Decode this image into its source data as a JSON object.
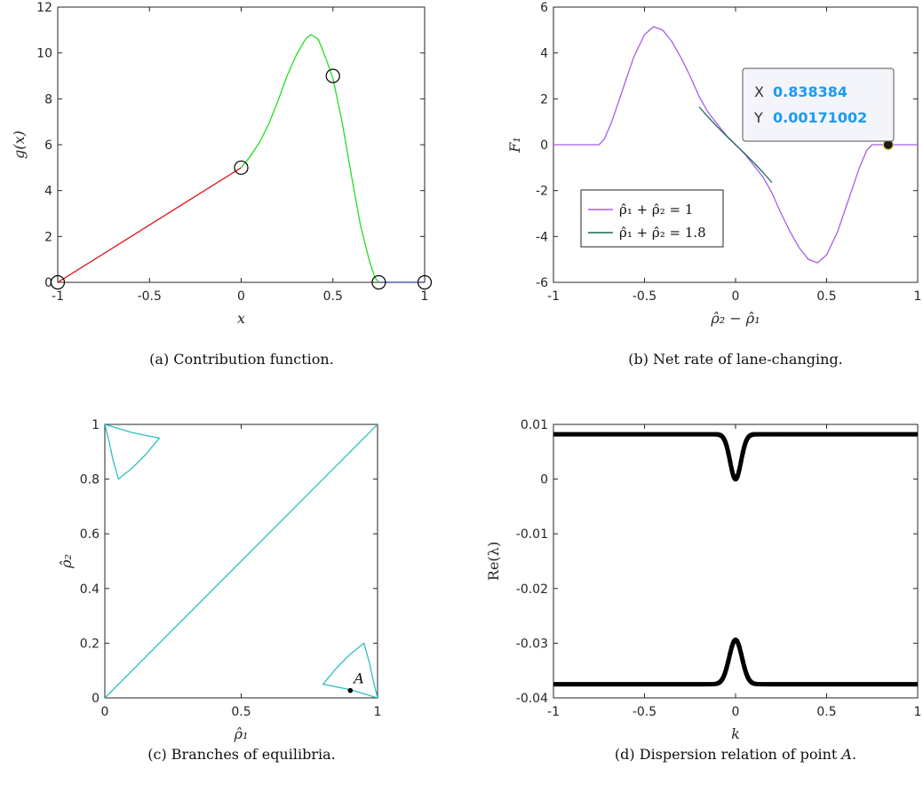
{
  "chart_data": [
    {
      "id": "a",
      "type": "line",
      "caption": "(a)  Contribution function.",
      "xlabel": "x",
      "ylabel": "g(x)",
      "xlim": [
        -1,
        1
      ],
      "ylim": [
        0,
        12
      ],
      "xticks": [
        -1,
        -0.5,
        0,
        0.5,
        1
      ],
      "xtick_labels": [
        "-1",
        "-0.5",
        "0",
        "0.5",
        "1"
      ],
      "yticks": [
        0,
        2,
        4,
        6,
        8,
        10,
        12
      ],
      "ytick_labels": [
        "0",
        "2",
        "4",
        "6",
        "8",
        "10",
        "12"
      ],
      "series": [
        {
          "color": "#e01010",
          "points": [
            [
              -1,
              0
            ],
            [
              0,
              5
            ]
          ]
        },
        {
          "color": "#22dd22",
          "points": [
            [
              0,
              5
            ],
            [
              0.05,
              5.5
            ],
            [
              0.1,
              6.1
            ],
            [
              0.15,
              6.9
            ],
            [
              0.2,
              7.9
            ],
            [
              0.25,
              9.0
            ],
            [
              0.3,
              9.9
            ],
            [
              0.35,
              10.6
            ],
            [
              0.38,
              10.8
            ],
            [
              0.42,
              10.6
            ],
            [
              0.46,
              9.8
            ],
            [
              0.5,
              8.9
            ],
            [
              0.55,
              7.0
            ],
            [
              0.6,
              4.7
            ],
            [
              0.65,
              2.5
            ],
            [
              0.7,
              0.9
            ],
            [
              0.73,
              0.2
            ],
            [
              0.75,
              0
            ]
          ]
        },
        {
          "color": "#2020dd",
          "points": [
            [
              0.75,
              0
            ],
            [
              1,
              0
            ]
          ]
        }
      ],
      "markers": [
        [
          -1,
          0
        ],
        [
          0,
          5
        ],
        [
          0.5,
          9
        ],
        [
          0.75,
          0
        ],
        [
          1,
          0
        ]
      ]
    },
    {
      "id": "b",
      "type": "line",
      "caption": "(b)  Net rate of lane-changing.",
      "xlabel": "ρ̂₂ − ρ̂₁",
      "ylabel": "F₁",
      "xlim": [
        -1,
        1
      ],
      "ylim": [
        -6,
        6
      ],
      "xticks": [
        -1,
        -0.5,
        0,
        0.5,
        1
      ],
      "xtick_labels": [
        "-1",
        "-0.5",
        "0",
        "0.5",
        "1"
      ],
      "yticks": [
        -6,
        -4,
        -2,
        0,
        2,
        4,
        6
      ],
      "ytick_labels": [
        "-6",
        "-4",
        "-2",
        "0",
        "2",
        "4",
        "6"
      ],
      "legend_position": "lower-left",
      "series": [
        {
          "name": "ρ̂₁ + ρ̂₂ = 1",
          "color": "#a95eea",
          "points": [
            [
              -1,
              0
            ],
            [
              -0.75,
              0
            ],
            [
              -0.72,
              0.25
            ],
            [
              -0.68,
              1.0
            ],
            [
              -0.62,
              2.4
            ],
            [
              -0.56,
              3.8
            ],
            [
              -0.5,
              4.8
            ],
            [
              -0.45,
              5.15
            ],
            [
              -0.4,
              5.0
            ],
            [
              -0.35,
              4.5
            ],
            [
              -0.3,
              3.8
            ],
            [
              -0.25,
              3.0
            ],
            [
              -0.2,
              2.1
            ],
            [
              -0.15,
              1.4
            ],
            [
              -0.1,
              0.9
            ],
            [
              -0.05,
              0.4
            ],
            [
              0,
              0
            ],
            [
              0.05,
              -0.4
            ],
            [
              0.1,
              -0.9
            ],
            [
              0.15,
              -1.4
            ],
            [
              0.2,
              -2.1
            ],
            [
              0.25,
              -3.0
            ],
            [
              0.3,
              -3.8
            ],
            [
              0.35,
              -4.5
            ],
            [
              0.4,
              -5.0
            ],
            [
              0.45,
              -5.15
            ],
            [
              0.5,
              -4.8
            ],
            [
              0.56,
              -3.8
            ],
            [
              0.62,
              -2.4
            ],
            [
              0.68,
              -1.0
            ],
            [
              0.72,
              -0.25
            ],
            [
              0.75,
              0
            ],
            [
              1,
              0
            ]
          ]
        },
        {
          "name": "ρ̂₁ + ρ̂₂ = 1.8",
          "color": "#1a6a55",
          "points": [
            [
              -0.2,
              1.65
            ],
            [
              -0.15,
              1.2
            ],
            [
              -0.1,
              0.78
            ],
            [
              -0.05,
              0.38
            ],
            [
              0,
              0
            ],
            [
              0.05,
              -0.38
            ],
            [
              0.1,
              -0.78
            ],
            [
              0.15,
              -1.2
            ],
            [
              0.2,
              -1.65
            ]
          ]
        }
      ],
      "datatip": {
        "x_key": "X",
        "x_value": "0.838384",
        "y_key": "Y",
        "y_value": "0.00171002",
        "point": [
          0.838384,
          0.00171002
        ]
      }
    },
    {
      "id": "c",
      "type": "line",
      "caption": "(c)  Branches of equilibria.",
      "xlabel": "ρ̂₁",
      "ylabel": "ρ̂₂",
      "xlim": [
        0,
        1
      ],
      "ylim": [
        0,
        1
      ],
      "xticks": [
        0,
        0.5,
        1
      ],
      "xtick_labels": [
        "0",
        "0.5",
        "1"
      ],
      "yticks": [
        0,
        0.2,
        0.4,
        0.6,
        0.8,
        1
      ],
      "ytick_labels": [
        "0",
        "0.2",
        "0.4",
        "0.6",
        "0.8",
        "1"
      ],
      "color": "#2ebfbf",
      "series": [
        {
          "points": [
            [
              0,
              0
            ],
            [
              1,
              1
            ]
          ]
        },
        {
          "points": [
            [
              0,
              1
            ],
            [
              0.1,
              0.97
            ],
            [
              0.2,
              0.95
            ],
            [
              0.15,
              0.89
            ],
            [
              0.1,
              0.84
            ],
            [
              0.05,
              0.8
            ],
            [
              0.03,
              0.87
            ],
            [
              0.015,
              0.94
            ],
            [
              0,
              1
            ]
          ]
        },
        {
          "points": [
            [
              1,
              0
            ],
            [
              0.9,
              0.03
            ],
            [
              0.8,
              0.05
            ],
            [
              0.85,
              0.11
            ],
            [
              0.9,
              0.16
            ],
            [
              0.95,
              0.2
            ],
            [
              0.97,
              0.13
            ],
            [
              0.985,
              0.06
            ],
            [
              1,
              0
            ]
          ]
        }
      ],
      "point_A": {
        "label": "A",
        "point": [
          0.9,
          0.027
        ]
      }
    },
    {
      "id": "d",
      "type": "scatter",
      "caption": "(d)  Dispersion relation of point ",
      "caption_italic": "A",
      "caption_end": ".",
      "xlabel": "k",
      "ylabel": "Re(λ)",
      "xlim": [
        -1,
        1
      ],
      "ylim": [
        -0.04,
        0.01
      ],
      "xticks": [
        -1,
        -0.5,
        0,
        0.5,
        1
      ],
      "xtick_labels": [
        "-1",
        "-0.5",
        "0",
        "0.5",
        "1"
      ],
      "yticks": [
        -0.04,
        -0.03,
        -0.02,
        -0.01,
        0,
        0.01
      ],
      "ytick_labels": [
        "-0.04",
        "-0.03",
        "-0.02",
        "-0.01",
        "0",
        "0.01"
      ],
      "color": "#000000",
      "branches": [
        {
          "base": 0.0082,
          "dip": -0.0082,
          "width": 0.03
        },
        {
          "base": -0.0375,
          "dip": 0.0081,
          "width": 0.035
        }
      ]
    }
  ]
}
